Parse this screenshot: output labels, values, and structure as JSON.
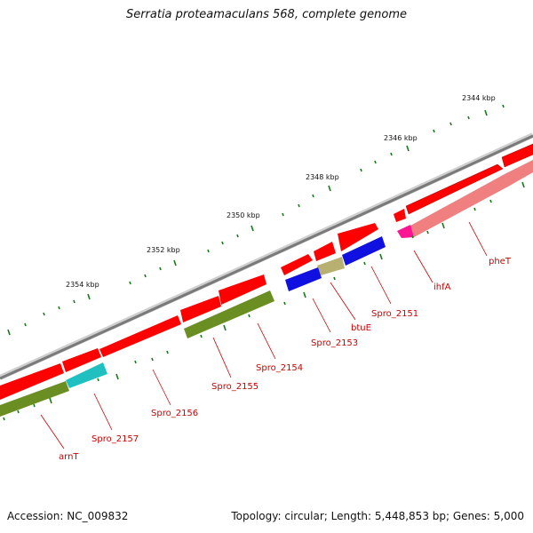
{
  "title": "Serratia proteamaculans 568, complete genome",
  "footer": {
    "accession": "Accession: NC_009832",
    "summary": "Topology: circular; Length: 5,448,853 bp; Genes: 5,000"
  },
  "ticks": [
    {
      "label": "2344 kbp"
    },
    {
      "label": "2346 kbp"
    },
    {
      "label": "2348 kbp"
    },
    {
      "label": "2350 kbp"
    },
    {
      "label": "2352 kbp"
    },
    {
      "label": "2354 kbp"
    }
  ],
  "genes": [
    {
      "name": "pheT",
      "color": "#f08080"
    },
    {
      "name": "ihfA",
      "color": "#ff1493"
    },
    {
      "name": "Spro_2151",
      "color": "#1010e0"
    },
    {
      "name": "btuE",
      "color": "#b8b070"
    },
    {
      "name": "Spro_2153",
      "color": "#1010e0"
    },
    {
      "name": "Spro_2154",
      "color": "#6b8e23"
    },
    {
      "name": "Spro_2155",
      "color": "#6b8e23"
    },
    {
      "name": "Spro_2156",
      "color": "#ff0000"
    },
    {
      "name": "Spro_2157",
      "color": "#20c0c0"
    },
    {
      "name": "arnT",
      "color": "#6b8e23"
    }
  ],
  "colors": {
    "backbone": "#808080",
    "cds_forward": "#ff0000",
    "tick_marks": "#1a7a1a",
    "label_lines": "#cc0000"
  }
}
